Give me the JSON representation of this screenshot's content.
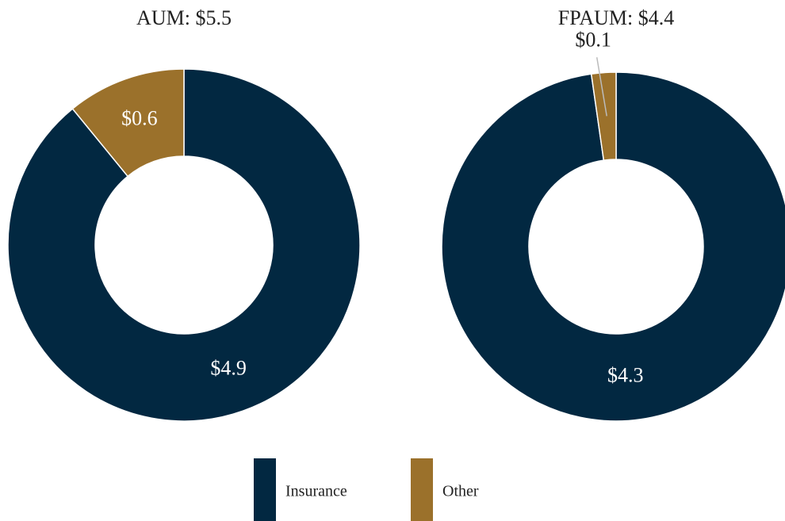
{
  "chart_data": [
    {
      "type": "donut",
      "title": "AUM: $5.5",
      "values": [
        4.9,
        0.6
      ],
      "value_labels": [
        "$4.9",
        "$0.6"
      ]
    },
    {
      "type": "donut",
      "title": "FPAUM: $4.4",
      "values": [
        4.3,
        0.1
      ],
      "value_labels": [
        "$4.3",
        "$0.1"
      ]
    }
  ],
  "legend": {
    "items": [
      "Insurance",
      "Other"
    ],
    "colors": [
      "#022841",
      "#9b712b"
    ]
  }
}
